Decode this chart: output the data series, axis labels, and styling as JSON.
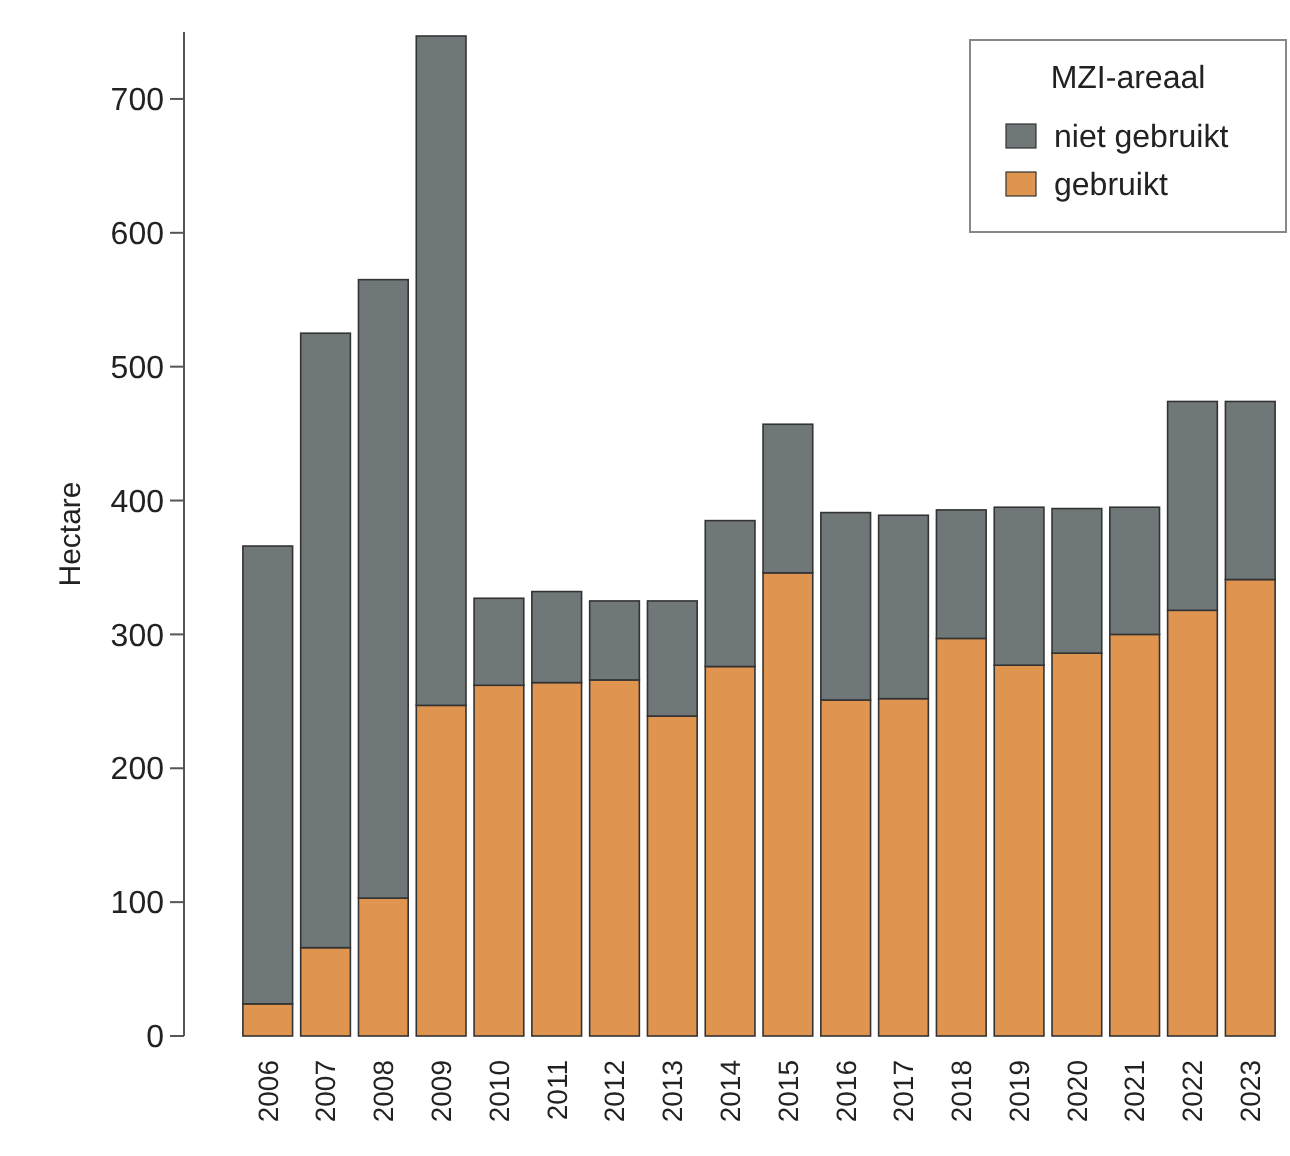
{
  "chart_data": {
    "type": "bar",
    "stacked": true,
    "ylabel": "Hectare",
    "legend_title": "MZI-areaal",
    "legend": "top right",
    "grid": false,
    "categories": [
      "2006",
      "2007",
      "2008",
      "2009",
      "2010",
      "2011",
      "2012",
      "2013",
      "2014",
      "2015",
      "2016",
      "2017",
      "2018",
      "2019",
      "2020",
      "2021",
      "2022",
      "2023"
    ],
    "ylim": [
      0,
      750
    ],
    "yticks": [
      0,
      100,
      200,
      300,
      400,
      500,
      600,
      700
    ],
    "series": [
      {
        "name": "gebruikt",
        "color": "#df9450",
        "values": [
          24,
          66,
          103,
          247,
          262,
          264,
          266,
          239,
          276,
          346,
          251,
          252,
          297,
          277,
          286,
          300,
          318,
          341
        ]
      },
      {
        "name": "niet gebruikt",
        "color": "#6f7778",
        "values": [
          342,
          459,
          462,
          500,
          65,
          68,
          59,
          86,
          109,
          111,
          140,
          137,
          96,
          118,
          108,
          95,
          156,
          133
        ]
      }
    ]
  }
}
